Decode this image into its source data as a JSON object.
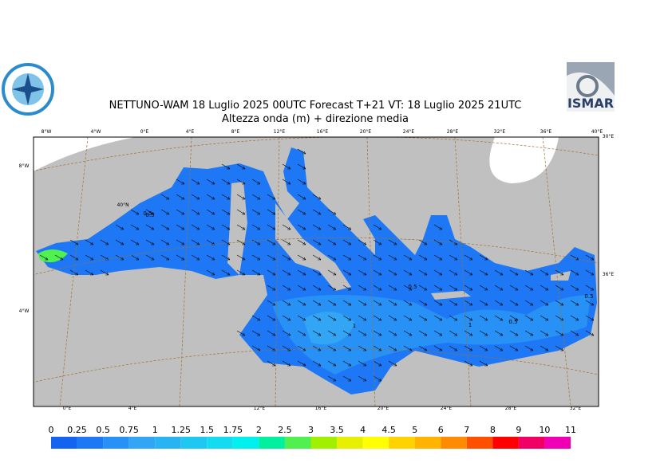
{
  "header": {
    "title": "NETTUNO-WAM  18  Luglio   2025 00UTC Forecast T+21 VT: 18  Luglio   2025 21UTC",
    "subtitle": "Altezza onda (m) + direzione media",
    "logo_right": "ISMAR"
  },
  "graticule": {
    "top": [
      "8°W",
      "4°W",
      "0°E",
      "4°E",
      "8°E",
      "12°E",
      "16°E",
      "20°E",
      "24°E",
      "28°E",
      "32°E",
      "36°E",
      "40°E"
    ],
    "bottom": [
      "0°E",
      "4°E",
      "12°E",
      "16°E",
      "20°E",
      "24°E",
      "28°E",
      "32°E"
    ],
    "left": [
      "8°W",
      "4°W"
    ],
    "right": [
      "30°E",
      "36°E"
    ],
    "lat": [
      "40°N"
    ]
  },
  "contour_labels": [
    "0.5",
    "0.5",
    "1",
    "1",
    "0.5",
    "0.5",
    "0.5"
  ],
  "colorbar": {
    "levels": [
      0,
      0.25,
      0.5,
      0.75,
      1,
      1.25,
      1.5,
      1.75,
      2,
      2.5,
      3,
      3.5,
      4,
      4.5,
      5,
      6,
      7,
      8,
      9,
      10,
      11
    ],
    "colors": [
      "#1464f0",
      "#1e78f5",
      "#2891f5",
      "#32a5f5",
      "#28b4f0",
      "#1ec8f0",
      "#14dcf0",
      "#00f0f0",
      "#00f0a0",
      "#50f050",
      "#a0f000",
      "#e6f000",
      "#ffff00",
      "#ffd200",
      "#ffb400",
      "#ff8c00",
      "#ff5000",
      "#ff0000",
      "#f00064",
      "#f000b4"
    ]
  }
}
